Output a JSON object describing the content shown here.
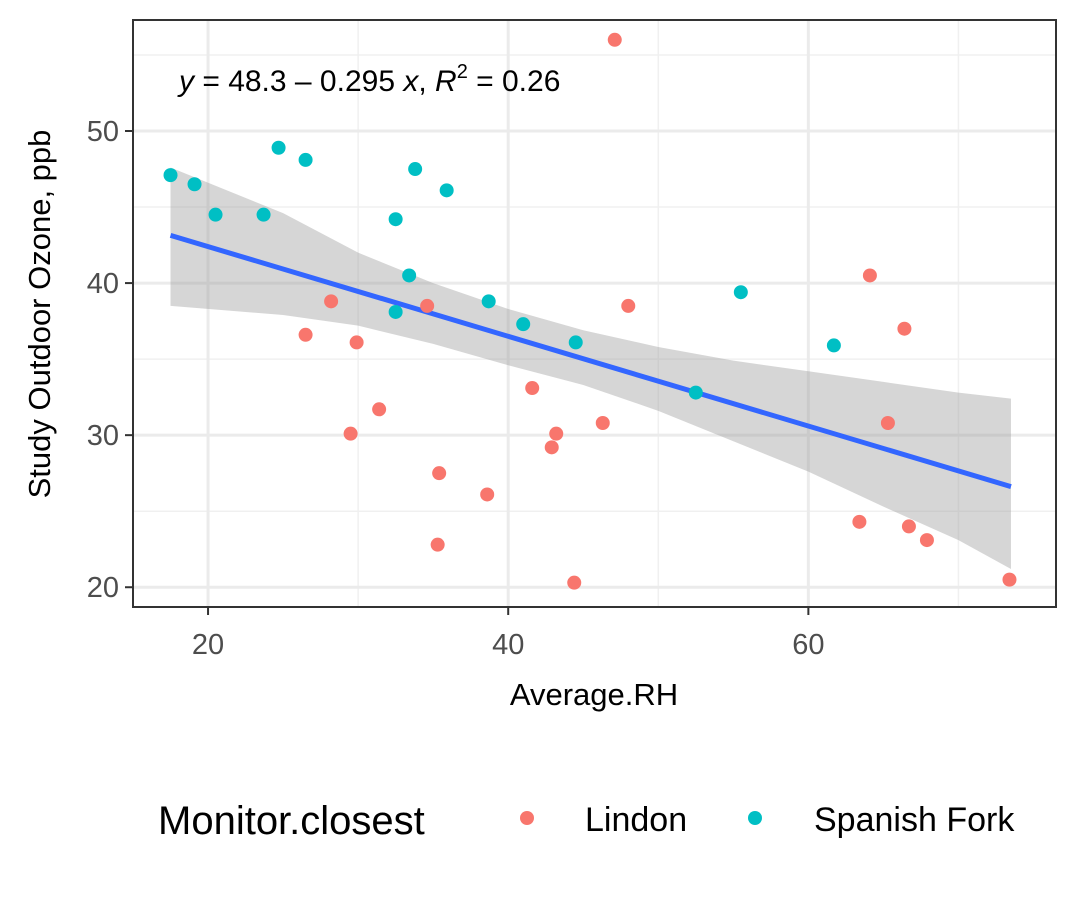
{
  "chart_data": {
    "type": "scatter",
    "xlabel": "Average.RH",
    "ylabel": "Study Outdoor Ozone, ppb",
    "xlim": [
      15,
      76.5
    ],
    "ylim": [
      18.7,
      57.3
    ],
    "x_ticks": [
      20,
      40,
      60
    ],
    "x_minor_ticks": [
      30,
      50,
      70
    ],
    "y_ticks": [
      20,
      30,
      40,
      50
    ],
    "y_minor_ticks": [
      25,
      35,
      45,
      55
    ],
    "grid": true,
    "legend": {
      "title": "Monitor.closest",
      "position": "bottom"
    },
    "annotation": {
      "y_part": "y",
      "eq_part": " = 48.3 – 0.295 ",
      "x_part": "x",
      "comma": ", ",
      "r_part": "R",
      "r_sup": "2",
      "r_val": " = 0.26"
    },
    "regression": {
      "intercept": 48.3,
      "slope": -0.295,
      "x_range": [
        17.5,
        73.5
      ],
      "band": [
        {
          "x": 17.5,
          "lo": 38.5,
          "hi": 47.6
        },
        {
          "x": 25,
          "lo": 37.9,
          "hi": 44.6
        },
        {
          "x": 30,
          "lo": 37.2,
          "hi": 42.0
        },
        {
          "x": 35,
          "lo": 36.0,
          "hi": 40.0
        },
        {
          "x": 40,
          "lo": 34.6,
          "hi": 38.3
        },
        {
          "x": 45,
          "lo": 33.3,
          "hi": 36.9
        },
        {
          "x": 50,
          "lo": 31.6,
          "hi": 35.8
        },
        {
          "x": 55,
          "lo": 29.6,
          "hi": 34.9
        },
        {
          "x": 60,
          "lo": 27.6,
          "hi": 34.2
        },
        {
          "x": 65,
          "lo": 25.3,
          "hi": 33.5
        },
        {
          "x": 70,
          "lo": 23.1,
          "hi": 32.8
        },
        {
          "x": 73.5,
          "lo": 21.2,
          "hi": 32.4
        }
      ],
      "color": "#3366FF",
      "band_color": "#999999"
    },
    "series": [
      {
        "name": "Lindon",
        "color": "#F8766D",
        "points": [
          {
            "x": 47.1,
            "y": 56.0
          },
          {
            "x": 28.2,
            "y": 38.8
          },
          {
            "x": 26.5,
            "y": 36.6
          },
          {
            "x": 29.9,
            "y": 36.1
          },
          {
            "x": 34.6,
            "y": 38.5
          },
          {
            "x": 31.4,
            "y": 31.7
          },
          {
            "x": 29.5,
            "y": 30.1
          },
          {
            "x": 35.4,
            "y": 27.5
          },
          {
            "x": 35.3,
            "y": 22.8
          },
          {
            "x": 38.6,
            "y": 26.1
          },
          {
            "x": 41.6,
            "y": 33.1
          },
          {
            "x": 43.2,
            "y": 30.1
          },
          {
            "x": 42.9,
            "y": 29.2
          },
          {
            "x": 44.4,
            "y": 20.3
          },
          {
            "x": 46.3,
            "y": 30.8
          },
          {
            "x": 48.0,
            "y": 38.5
          },
          {
            "x": 64.1,
            "y": 40.5
          },
          {
            "x": 66.4,
            "y": 37.0
          },
          {
            "x": 65.3,
            "y": 30.8
          },
          {
            "x": 63.4,
            "y": 24.3
          },
          {
            "x": 66.7,
            "y": 24.0
          },
          {
            "x": 67.9,
            "y": 23.1
          },
          {
            "x": 73.4,
            "y": 20.5
          }
        ]
      },
      {
        "name": "Spanish Fork",
        "color": "#00BFC4",
        "points": [
          {
            "x": 17.5,
            "y": 47.1
          },
          {
            "x": 19.1,
            "y": 46.5
          },
          {
            "x": 20.5,
            "y": 44.5
          },
          {
            "x": 23.7,
            "y": 44.5
          },
          {
            "x": 24.7,
            "y": 48.9
          },
          {
            "x": 26.5,
            "y": 48.1
          },
          {
            "x": 33.8,
            "y": 47.5
          },
          {
            "x": 35.9,
            "y": 46.1
          },
          {
            "x": 32.5,
            "y": 44.2
          },
          {
            "x": 33.4,
            "y": 40.5
          },
          {
            "x": 32.5,
            "y": 38.1
          },
          {
            "x": 38.7,
            "y": 38.8
          },
          {
            "x": 41.0,
            "y": 37.3
          },
          {
            "x": 44.5,
            "y": 36.1
          },
          {
            "x": 52.5,
            "y": 32.8
          },
          {
            "x": 55.5,
            "y": 39.4
          },
          {
            "x": 61.7,
            "y": 35.9
          }
        ]
      }
    ]
  }
}
